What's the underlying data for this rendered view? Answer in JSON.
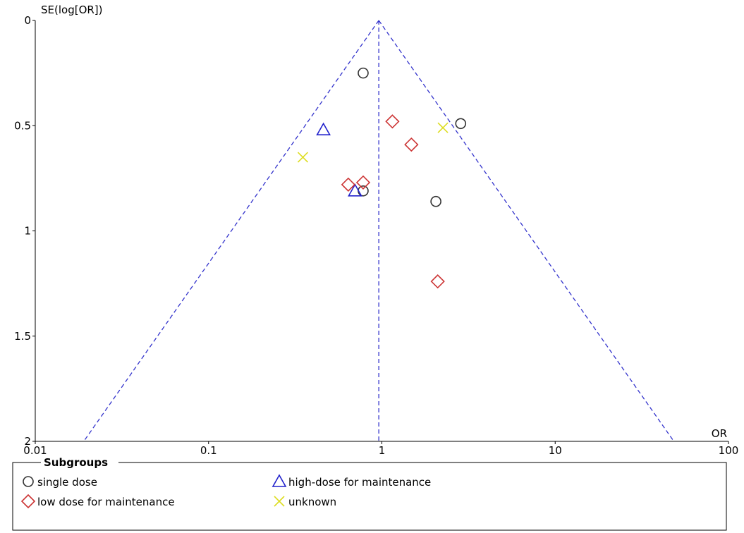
{
  "chart_data": {
    "type": "scatter",
    "subtype": "funnel-plot",
    "x_axis": {
      "label": "OR",
      "scale": "log",
      "range": [
        0.01,
        100
      ],
      "ticks": [
        {
          "value": 0.01,
          "label": "0.01"
        },
        {
          "value": 0.1,
          "label": "0.1"
        },
        {
          "value": 1,
          "label": "1"
        },
        {
          "value": 10,
          "label": "10"
        },
        {
          "value": 100,
          "label": "100"
        }
      ]
    },
    "y_axis": {
      "label": "SE(log[OR])",
      "reversed": true,
      "range": [
        0,
        2
      ],
      "ticks": [
        {
          "value": 0,
          "label": "0"
        },
        {
          "value": 0.5,
          "label": "0.5"
        },
        {
          "value": 1,
          "label": "1"
        },
        {
          "value": 1.5,
          "label": "1.5"
        },
        {
          "value": 2,
          "label": "2"
        }
      ]
    },
    "pooled_or": 0.96,
    "funnel_color": "#3333cc",
    "legend": {
      "title": "Subgroups",
      "position": "bottom"
    },
    "series": [
      {
        "name": "single dose",
        "marker": "circle",
        "color": "#333333",
        "points": [
          {
            "or": 0.78,
            "se": 0.25
          },
          {
            "or": 2.85,
            "se": 0.49
          },
          {
            "or": 0.78,
            "se": 0.81
          },
          {
            "or": 2.05,
            "se": 0.86
          }
        ]
      },
      {
        "name": "high-dose for maintenance",
        "marker": "triangle",
        "color": "#2222cc",
        "points": [
          {
            "or": 0.46,
            "se": 0.52
          },
          {
            "or": 0.7,
            "se": 0.81
          }
        ]
      },
      {
        "name": "low dose for maintenance",
        "marker": "diamond",
        "color": "#cc3333",
        "points": [
          {
            "or": 1.15,
            "se": 0.48
          },
          {
            "or": 1.48,
            "se": 0.59
          },
          {
            "or": 0.64,
            "se": 0.78
          },
          {
            "or": 0.78,
            "se": 0.77
          },
          {
            "or": 2.1,
            "se": 1.24
          }
        ]
      },
      {
        "name": "unknown",
        "marker": "cross",
        "color": "#dddd22",
        "points": [
          {
            "or": 2.25,
            "se": 0.51
          },
          {
            "or": 0.35,
            "se": 0.65
          }
        ]
      }
    ]
  }
}
